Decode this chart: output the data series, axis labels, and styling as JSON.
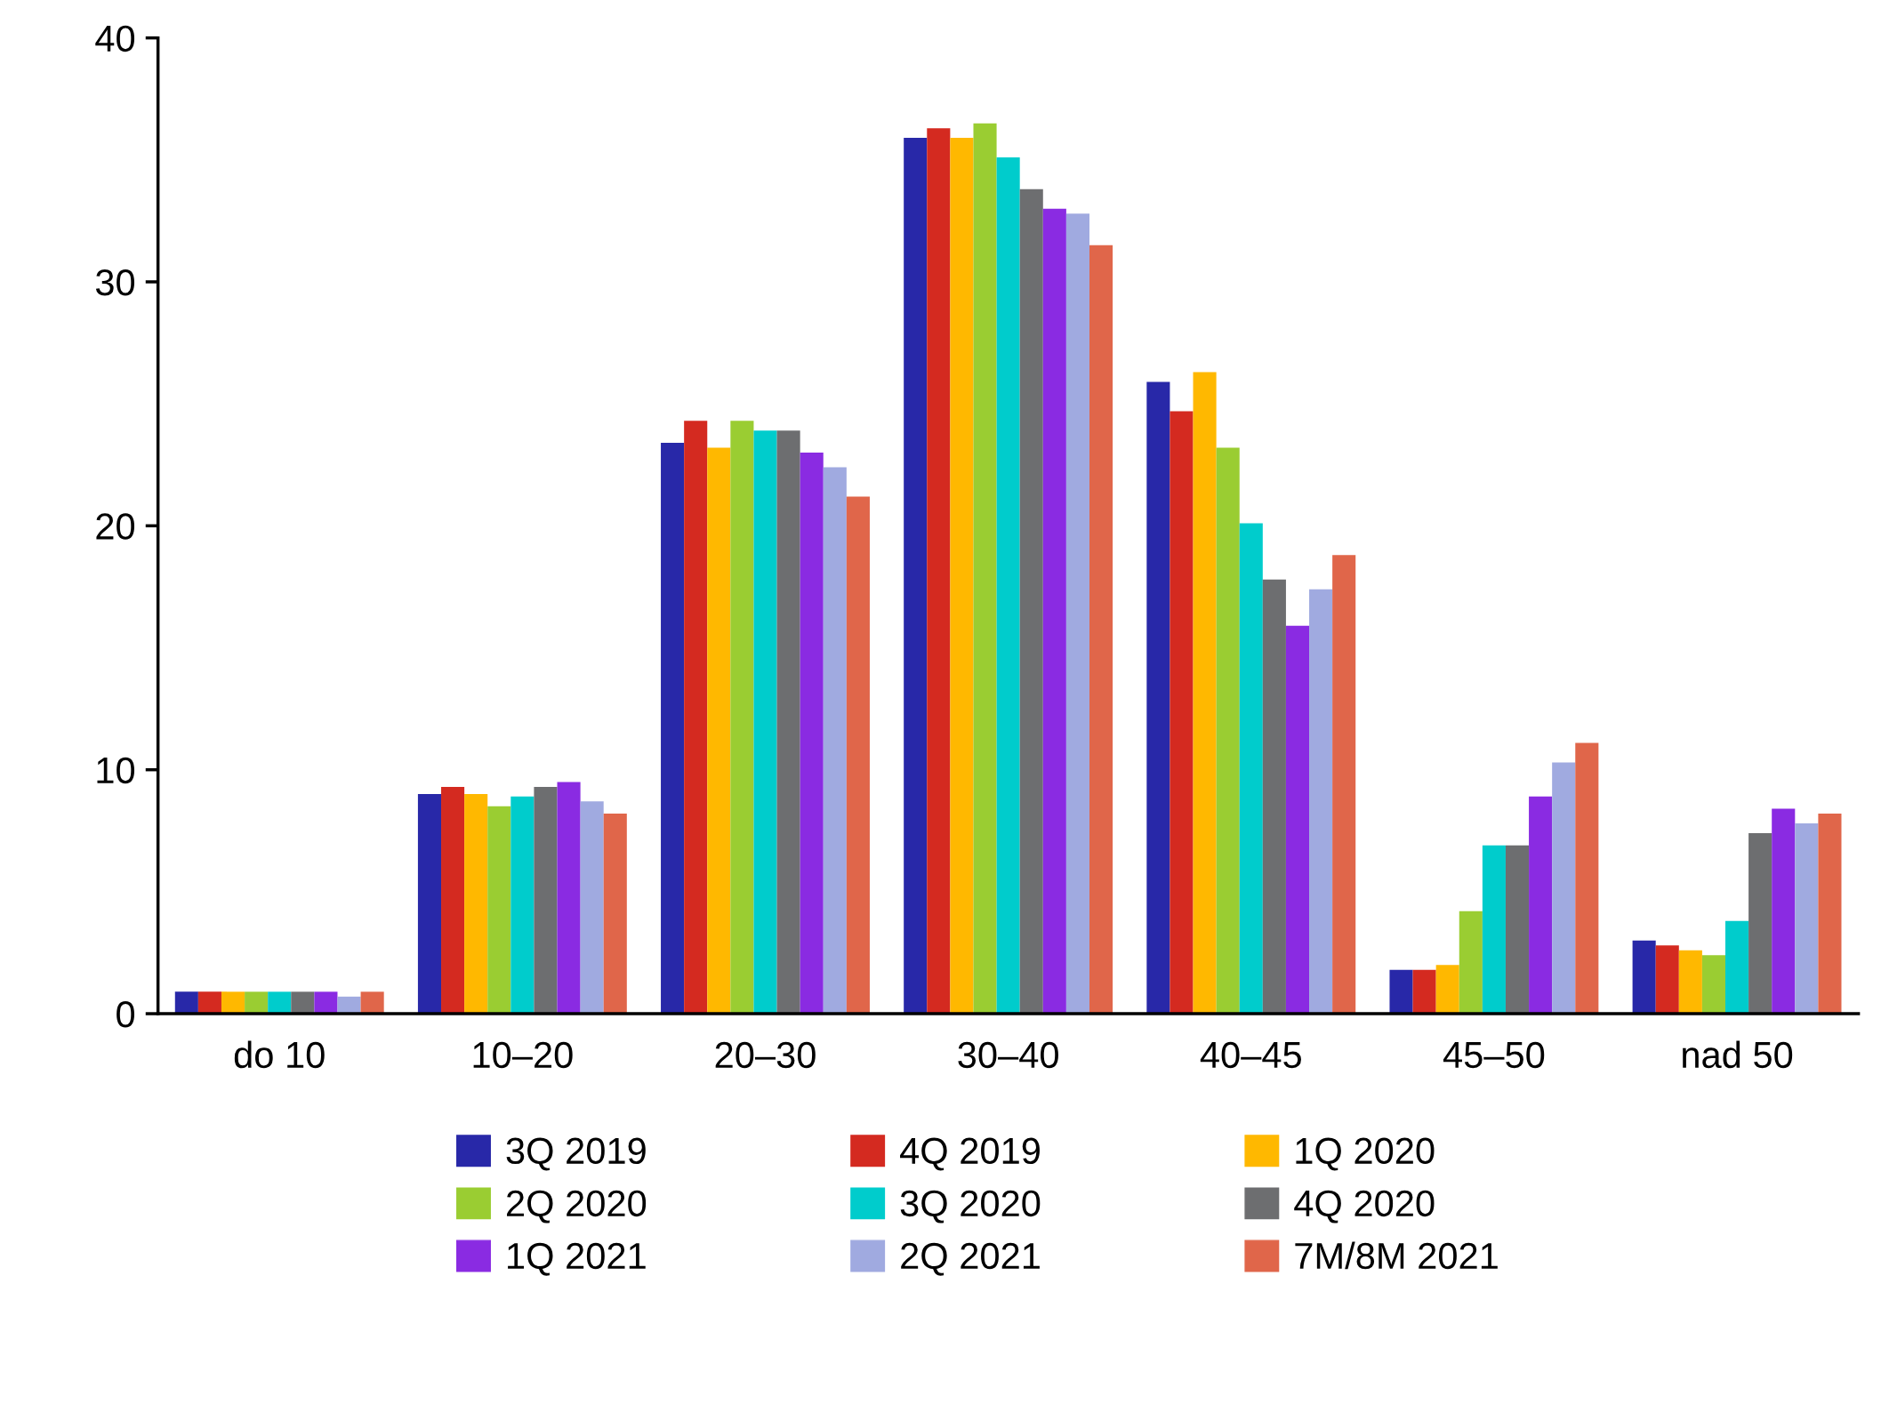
{
  "chart_data": {
    "type": "bar",
    "categories": [
      "do 10",
      "10–20",
      "20–30",
      "30–40",
      "40–45",
      "45–50",
      "nad 50"
    ],
    "series": [
      {
        "name": "3Q 2019",
        "color": "#2828a8",
        "values": [
          0.9,
          9.0,
          23.4,
          35.9,
          25.9,
          1.8,
          3.0
        ]
      },
      {
        "name": "4Q 2019",
        "color": "#d42a20",
        "values": [
          0.9,
          9.3,
          24.3,
          36.3,
          24.7,
          1.8,
          2.8
        ]
      },
      {
        "name": "1Q 2020",
        "color": "#ffb800",
        "values": [
          0.9,
          9.0,
          23.2,
          35.9,
          26.3,
          2.0,
          2.6
        ]
      },
      {
        "name": "2Q 2020",
        "color": "#9acd32",
        "values": [
          0.9,
          8.5,
          24.3,
          36.5,
          23.2,
          4.2,
          2.4
        ]
      },
      {
        "name": "3Q 2020",
        "color": "#00cccc",
        "values": [
          0.9,
          8.9,
          23.9,
          35.1,
          20.1,
          6.9,
          3.8
        ]
      },
      {
        "name": "4Q 2020",
        "color": "#6d6e70",
        "values": [
          0.9,
          9.3,
          23.9,
          33.8,
          17.8,
          6.9,
          7.4
        ]
      },
      {
        "name": "1Q 2021",
        "color": "#8a2be2",
        "values": [
          0.9,
          9.5,
          23.0,
          33.0,
          15.9,
          8.9,
          8.4
        ]
      },
      {
        "name": "2Q 2021",
        "color": "#a0aae0",
        "values": [
          0.7,
          8.7,
          22.4,
          32.8,
          17.4,
          10.3,
          7.8
        ]
      },
      {
        "name": "7M/8M 2021",
        "color": "#e0664a",
        "values": [
          0.9,
          8.2,
          21.2,
          31.5,
          18.8,
          11.1,
          8.2
        ]
      }
    ],
    "ylim": [
      0,
      40
    ],
    "yticks": [
      0,
      10,
      20,
      30,
      40
    ],
    "grid": false,
    "legend": "bottom"
  }
}
